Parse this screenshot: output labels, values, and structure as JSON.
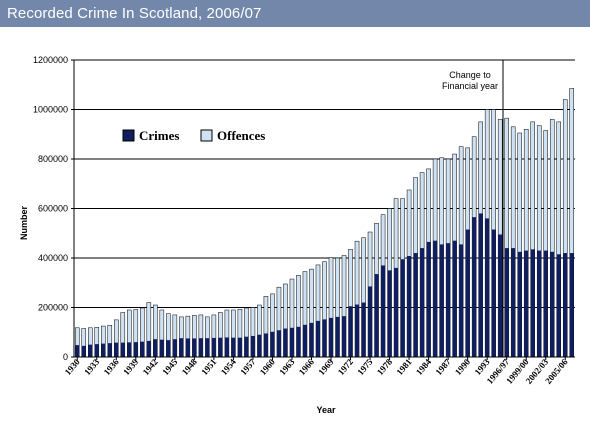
{
  "window": {
    "title": "Recorded Crime In Scotland, 2006/07"
  },
  "chart_data": {
    "type": "bar",
    "title": "",
    "xlabel": "Year",
    "ylabel": "Number",
    "ylim": [
      0,
      1200000
    ],
    "yticks": [
      "0",
      "200000",
      "400000",
      "600000",
      "800000",
      "1000000",
      "1200000"
    ],
    "grid": true,
    "legend_position": "upper-left",
    "annotation": "Change to\nFinancial year",
    "colors": {
      "Crimes": "#0f1e5e",
      "Offences": "#cfe2f3",
      "outline": "#000000",
      "grid": "#000000"
    },
    "tick_labels": [
      "1930",
      "1933",
      "1936",
      "1939",
      "1942",
      "1945",
      "1948",
      "1951",
      "1954",
      "1957",
      "1960",
      "1963",
      "1966",
      "1969",
      "1972",
      "1975",
      "1978",
      "1981",
      "1984",
      "1987",
      "1990",
      "1993",
      "1996/97",
      "1999/00",
      "2002/03",
      "2005/06"
    ],
    "categories": [
      "1930",
      "1931",
      "1932",
      "1933",
      "1934",
      "1935",
      "1936",
      "1937",
      "1938",
      "1939",
      "1940",
      "1941",
      "1942",
      "1943",
      "1944",
      "1945",
      "1946",
      "1947",
      "1948",
      "1949",
      "1950",
      "1951",
      "1952",
      "1953",
      "1954",
      "1955",
      "1956",
      "1957",
      "1958",
      "1959",
      "1960",
      "1961",
      "1962",
      "1963",
      "1964",
      "1965",
      "1966",
      "1967",
      "1968",
      "1969",
      "1970",
      "1971",
      "1972",
      "1973",
      "1974",
      "1975",
      "1976",
      "1977",
      "1978",
      "1979",
      "1980",
      "1981",
      "1982",
      "1983",
      "1984",
      "1985",
      "1986",
      "1987",
      "1988",
      "1989",
      "1990",
      "1991",
      "1992",
      "1993",
      "1994",
      "1995",
      "1996/97",
      "1997/98",
      "1998/99",
      "1999/00",
      "2000/01",
      "2001/02",
      "2002/03",
      "2003/04",
      "2004/05",
      "2005/06",
      "2006/07"
    ],
    "series": [
      {
        "name": "Crimes",
        "values": [
          48000,
          45000,
          50000,
          52000,
          54000,
          56000,
          58000,
          58000,
          59000,
          60000,
          62000,
          65000,
          72000,
          70000,
          68000,
          72000,
          76000,
          75000,
          75000,
          76000,
          76000,
          77000,
          78000,
          79000,
          78000,
          78000,
          82000,
          85000,
          90000,
          95000,
          102000,
          108000,
          115000,
          118000,
          122000,
          130000,
          138000,
          146000,
          152000,
          158000,
          162000,
          165000,
          205000,
          212000,
          220000,
          285000,
          335000,
          370000,
          350000,
          360000,
          395000,
          408000,
          420000,
          440000,
          465000,
          470000,
          455000,
          460000,
          470000,
          455000,
          515000,
          565000,
          580000,
          560000,
          515000,
          495000,
          440000,
          440000,
          425000,
          430000,
          435000,
          430000,
          430000,
          425000,
          415000,
          420000,
          420000
        ]
      },
      {
        "name": "Offences",
        "values": [
          118000,
          115000,
          118000,
          120000,
          125000,
          128000,
          150000,
          180000,
          190000,
          192000,
          198000,
          220000,
          210000,
          190000,
          175000,
          170000,
          162000,
          165000,
          168000,
          170000,
          162000,
          170000,
          180000,
          190000,
          190000,
          193000,
          198000,
          200000,
          210000,
          245000,
          255000,
          282000,
          295000,
          315000,
          330000,
          345000,
          355000,
          372000,
          385000,
          402000,
          400000,
          410000,
          435000,
          468000,
          482000,
          505000,
          540000,
          575000,
          600000,
          640000,
          640000,
          675000,
          725000,
          745000,
          760000,
          800000,
          805000,
          800000,
          820000,
          850000,
          845000,
          890000,
          950000,
          1000000,
          1000000,
          960000,
          965000,
          930000,
          905000,
          920000,
          950000,
          935000,
          915000,
          960000,
          950000,
          1040000,
          1085000
        ]
      }
    ]
  }
}
